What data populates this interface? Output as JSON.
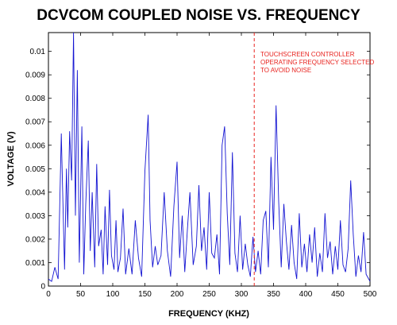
{
  "chart_data": {
    "type": "line",
    "title": "DCVCOM COUPLED NOISE VS. FREQUENCY",
    "xlabel": "FREQUENCY (KHZ)",
    "ylabel": "VOLTAGE (V)",
    "xlim": [
      0,
      500
    ],
    "ylim": [
      0,
      0.0108
    ],
    "x_ticks": [
      "0",
      "50",
      "100",
      "150",
      "200",
      "250",
      "300",
      "350",
      "400",
      "450",
      "500"
    ],
    "y_ticks": [
      "0",
      "0.001",
      "0.002",
      "0.003",
      "0.004",
      "0.005",
      "0.006",
      "0.007",
      "0.008",
      "0.009",
      "0.01"
    ],
    "grid": false,
    "line_color": "#1414d2",
    "marker_line": {
      "x": 320,
      "color": "#e8231f",
      "style": "dashed"
    },
    "annotation": {
      "lines": [
        "TOUCHSCREEN CONTROLLER",
        "OPERATING FREQUENCY SELECTED",
        "TO AVOID NOISE"
      ],
      "color": "#e8231f"
    },
    "series": [
      {
        "x": [
          0,
          5,
          10,
          15,
          18,
          20,
          22,
          25,
          28,
          30,
          33,
          36,
          39,
          42,
          45,
          48,
          52,
          55,
          58,
          62,
          65,
          68,
          72,
          75,
          78,
          82,
          85,
          88,
          92,
          95,
          98,
          102,
          105,
          108,
          112,
          116,
          120,
          125,
          130,
          135,
          140,
          145,
          150,
          155,
          158,
          162,
          166,
          170,
          175,
          180,
          185,
          190,
          195,
          200,
          204,
          208,
          212,
          216,
          220,
          225,
          230,
          234,
          238,
          242,
          246,
          250,
          254,
          258,
          262,
          266,
          270,
          274,
          278,
          282,
          286,
          290,
          294,
          298,
          302,
          306,
          310,
          314,
          318,
          322,
          326,
          330,
          334,
          338,
          342,
          346,
          350,
          354,
          358,
          362,
          366,
          370,
          374,
          378,
          382,
          386,
          390,
          394,
          398,
          402,
          406,
          410,
          414,
          418,
          422,
          426,
          430,
          434,
          438,
          442,
          446,
          450,
          454,
          458,
          462,
          466,
          470,
          474,
          478,
          482,
          486,
          490,
          494,
          498,
          500
        ],
        "y": [
          0.0003,
          0.0002,
          0.0008,
          0.0003,
          0.004,
          0.0065,
          0.0042,
          0.0007,
          0.005,
          0.0025,
          0.0066,
          0.0045,
          0.0108,
          0.003,
          0.0092,
          0.001,
          0.0068,
          0.0005,
          0.0035,
          0.0062,
          0.0015,
          0.004,
          0.0008,
          0.0052,
          0.0017,
          0.0024,
          0.0005,
          0.0034,
          0.0009,
          0.0041,
          0.0013,
          0.0007,
          0.0028,
          0.0006,
          0.0012,
          0.0033,
          0.0005,
          0.0016,
          0.0005,
          0.0028,
          0.0012,
          0.0004,
          0.0049,
          0.0073,
          0.0028,
          0.0008,
          0.0017,
          0.0009,
          0.0013,
          0.004,
          0.0015,
          0.0004,
          0.0034,
          0.0053,
          0.0012,
          0.003,
          0.0006,
          0.0024,
          0.004,
          0.0009,
          0.0017,
          0.0043,
          0.0015,
          0.0025,
          0.0007,
          0.004,
          0.0014,
          0.0012,
          0.0022,
          0.0005,
          0.006,
          0.0068,
          0.0031,
          0.0009,
          0.0057,
          0.0014,
          0.0006,
          0.003,
          0.0007,
          0.0018,
          0.0009,
          0.0004,
          0.0021,
          0.0006,
          0.0015,
          0.0005,
          0.0028,
          0.0032,
          0.0008,
          0.0055,
          0.0024,
          0.0077,
          0.0036,
          0.0008,
          0.0035,
          0.0019,
          0.0007,
          0.0026,
          0.001,
          0.0003,
          0.0031,
          0.0008,
          0.0018,
          0.0006,
          0.0022,
          0.001,
          0.0025,
          0.0004,
          0.0014,
          0.0006,
          0.0031,
          0.0012,
          0.0019,
          0.0005,
          0.0017,
          0.0007,
          0.0028,
          0.0009,
          0.0006,
          0.0016,
          0.0045,
          0.0022,
          0.0004,
          0.0013,
          0.0006,
          0.0023,
          0.0005,
          0.0003,
          0.0002
        ]
      }
    ]
  }
}
